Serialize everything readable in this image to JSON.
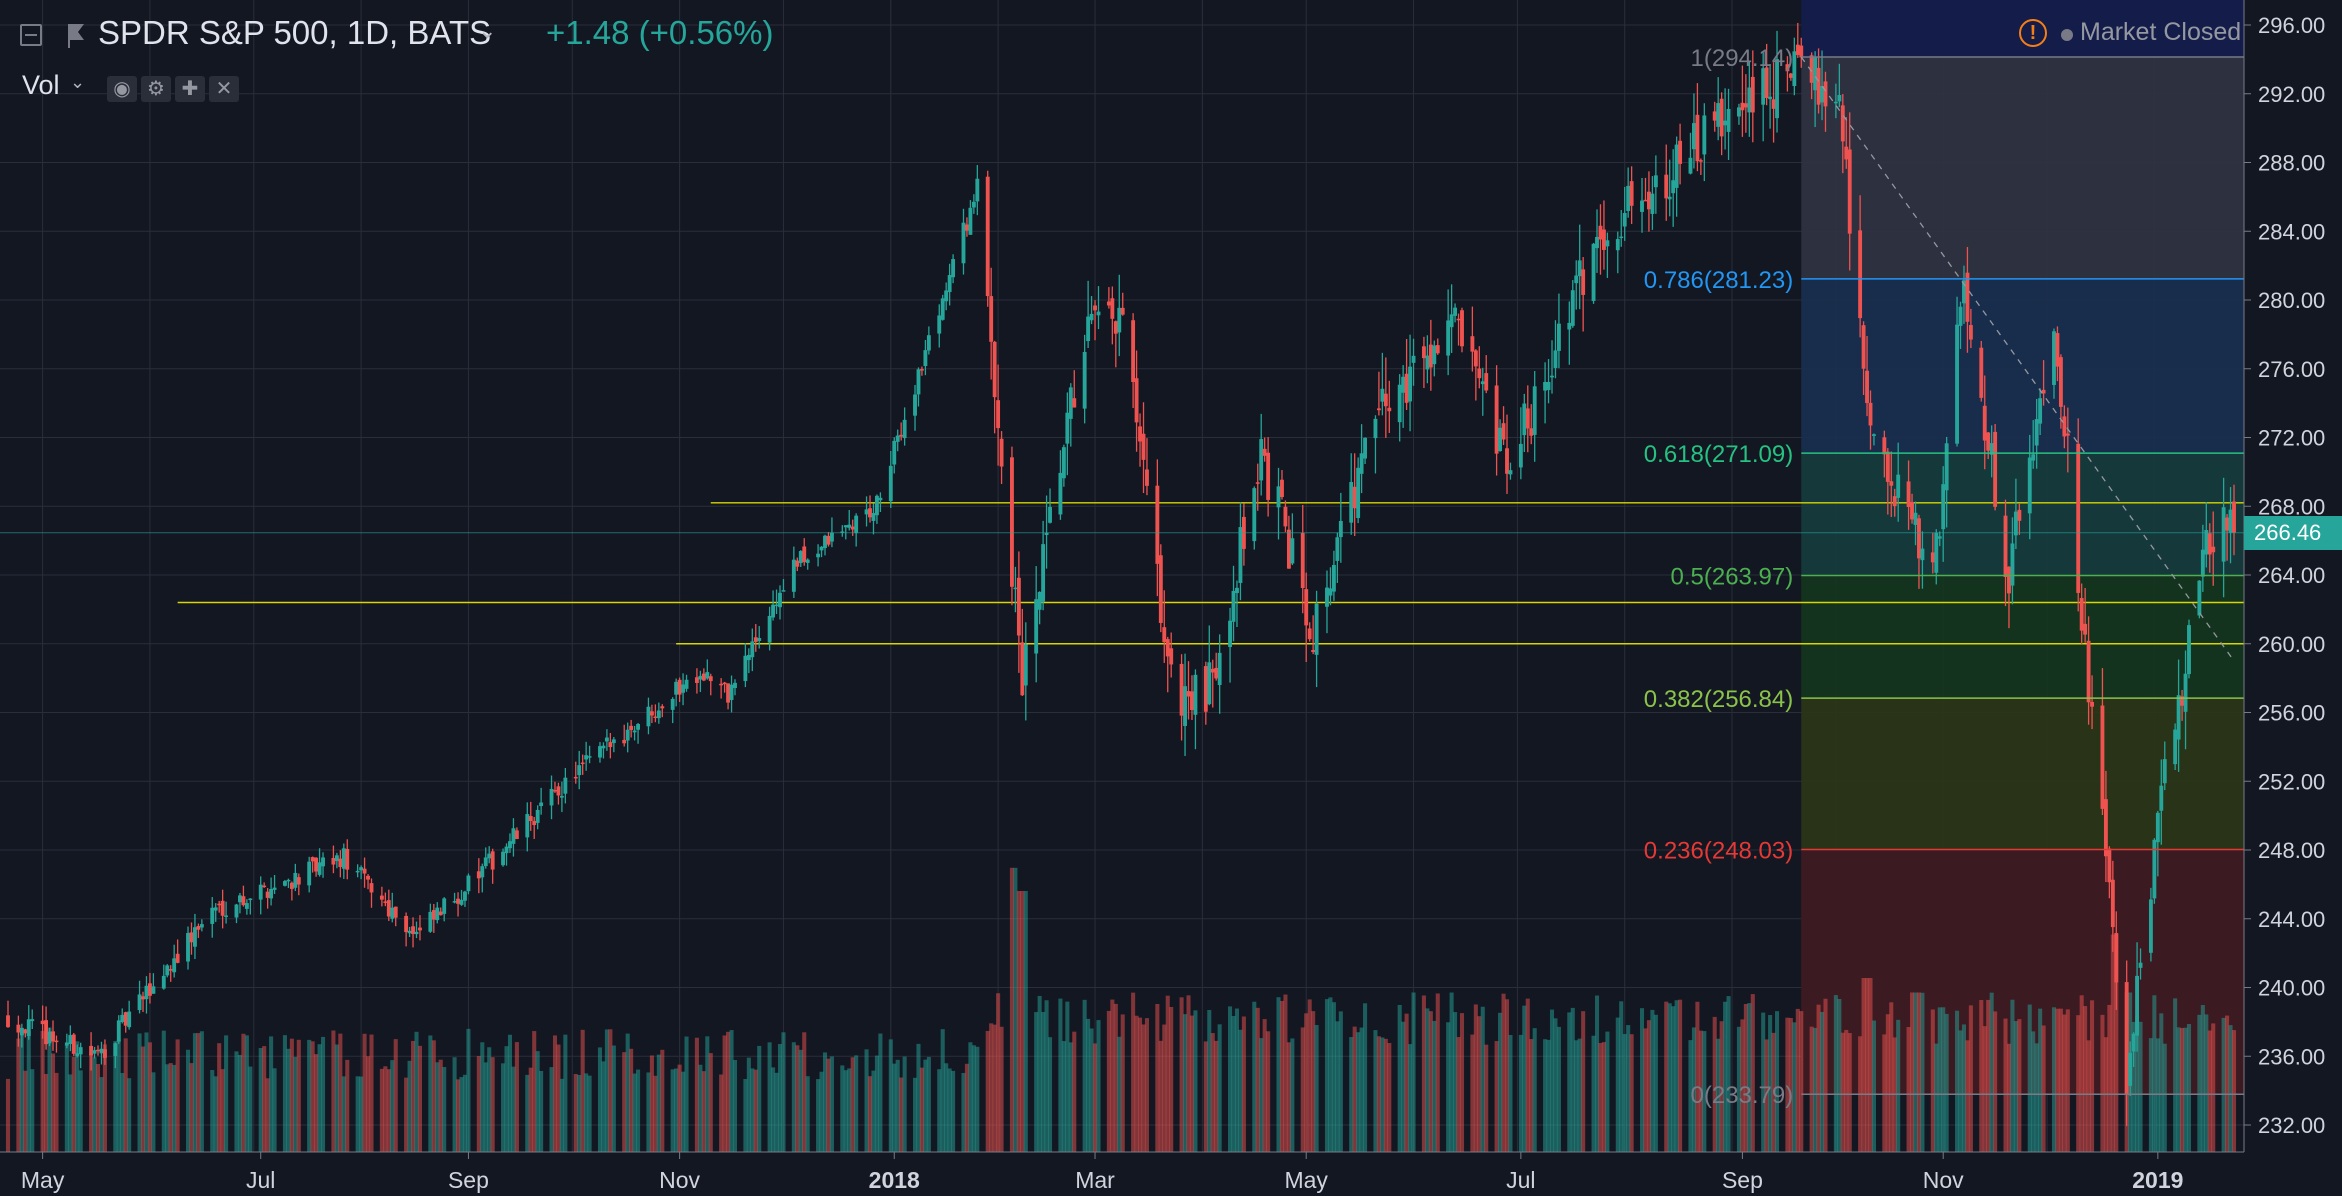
{
  "header": {
    "symbol": "SPDR S&P 500, 1D, BATS",
    "change": "+1.48 (+0.56%)",
    "volume_label": "Vol",
    "market_status": "Market Closed"
  },
  "colors": {
    "background": "#131722",
    "grid": "#2a2e39",
    "up": "#26a69a",
    "down": "#ef5350",
    "trendline": "#d7d600"
  },
  "icons": [
    "collapse-icon",
    "flag-icon",
    "chevron-down-icon",
    "eye-icon",
    "gear-icon",
    "plus-icon",
    "close-icon",
    "warning-icon"
  ],
  "last_price_label": "266.46",
  "chart_data": {
    "type": "candlestick",
    "price_axis_ticks": [
      "296.00",
      "292.00",
      "288.00",
      "284.00",
      "280.00",
      "276.00",
      "272.00",
      "268.00",
      "264.00",
      "260.00",
      "256.00",
      "252.00",
      "248.00",
      "244.00",
      "240.00",
      "236.00",
      "232.00"
    ],
    "time_axis_labels": [
      "May",
      "Jul",
      "Sep",
      "Nov",
      "2018",
      "Mar",
      "May",
      "Jul",
      "Sep",
      "Nov",
      "2019"
    ],
    "ylim": [
      230,
      297
    ],
    "last_price": 266.46,
    "grid": true,
    "anchors": [
      {
        "date": "2017-04-21",
        "price": 238.2
      },
      {
        "date": "2017-05-17",
        "price": 236.0
      },
      {
        "date": "2017-06-19",
        "price": 244.5
      },
      {
        "date": "2017-07-27",
        "price": 247.5
      },
      {
        "date": "2017-08-17",
        "price": 243.0
      },
      {
        "date": "2017-09-06",
        "price": 247.0
      },
      {
        "date": "2017-10-02",
        "price": 252.5
      },
      {
        "date": "2017-11-07",
        "price": 258.5
      },
      {
        "date": "2017-11-15",
        "price": 257.0
      },
      {
        "date": "2017-12-04",
        "price": 264.5
      },
      {
        "date": "2017-12-28",
        "price": 268.0
      },
      {
        "date": "2018-01-26",
        "price": 286.5
      },
      {
        "date": "2018-02-08",
        "price": 257.6
      },
      {
        "date": "2018-02-26",
        "price": 278.0
      },
      {
        "date": "2018-03-09",
        "price": 278.7
      },
      {
        "date": "2018-03-23",
        "price": 257.5
      },
      {
        "date": "2018-04-02",
        "price": 256.5
      },
      {
        "date": "2018-04-18",
        "price": 271.0
      },
      {
        "date": "2018-05-03",
        "price": 261.0
      },
      {
        "date": "2018-05-21",
        "price": 273.0
      },
      {
        "date": "2018-06-12",
        "price": 279.0
      },
      {
        "date": "2018-06-28",
        "price": 270.0
      },
      {
        "date": "2018-07-25",
        "price": 284.0
      },
      {
        "date": "2018-08-28",
        "price": 290.0
      },
      {
        "date": "2018-09-20",
        "price": 293.6
      },
      {
        "date": "2018-10-02",
        "price": 292.0
      },
      {
        "date": "2018-10-11",
        "price": 272.0
      },
      {
        "date": "2018-10-29",
        "price": 263.9
      },
      {
        "date": "2018-11-07",
        "price": 281.0
      },
      {
        "date": "2018-11-20",
        "price": 264.0
      },
      {
        "date": "2018-12-03",
        "price": 279.3
      },
      {
        "date": "2018-12-24",
        "price": 234.3
      },
      {
        "date": "2019-01-04",
        "price": 252.4
      },
      {
        "date": "2019-01-17",
        "price": 266.5
      }
    ],
    "volume_spikes": [
      {
        "date": "2018-02-05",
        "relative": 0.98
      },
      {
        "date": "2018-02-08",
        "relative": 0.9
      },
      {
        "date": "2018-03-23",
        "relative": 0.5
      },
      {
        "date": "2018-10-10",
        "relative": 0.6
      },
      {
        "date": "2018-10-24",
        "relative": 0.55
      },
      {
        "date": "2018-12-21",
        "relative": 0.75
      },
      {
        "date": "2018-12-24",
        "relative": 0.55
      }
    ],
    "horizontal_lines": [
      {
        "price": 268.2,
        "from_date": "2017-11-10"
      },
      {
        "price": 262.4,
        "from_date": "2017-06-09"
      },
      {
        "price": 260.0,
        "from_date": "2017-10-31"
      }
    ],
    "fibonacci": {
      "start_date": "2018-09-21",
      "end_date": "2019-01-24",
      "levels": [
        {
          "ratio": "1",
          "price": 294.14,
          "label": "1(294.14)",
          "color": "#787b86",
          "fill": "#303342"
        },
        {
          "ratio": "0.786",
          "price": 281.23,
          "label": "0.786(281.23)",
          "color": "#2196f3",
          "fill": "#1a3050"
        },
        {
          "ratio": "0.618",
          "price": 271.09,
          "label": "0.618(271.09)",
          "color": "#26c281",
          "fill": "#163c3e"
        },
        {
          "ratio": "0.5",
          "price": 263.97,
          "label": "0.5(263.97)",
          "color": "#4caf50",
          "fill": "#15361e"
        },
        {
          "ratio": "0.382",
          "price": 256.84,
          "label": "0.382(256.84)",
          "color": "#8bc34a",
          "fill": "#2b3617"
        },
        {
          "ratio": "0.236",
          "price": 248.03,
          "label": "0.236(248.03)",
          "color": "#e53935",
          "fill": "#3b1a22"
        },
        {
          "ratio": "0",
          "price": 233.79,
          "label": "0(233.79)",
          "color": "#787b86",
          "fill": ""
        }
      ],
      "top_band_color": "#141c4a"
    },
    "trend_line": {
      "from_date": "2018-09-21",
      "from_price": 294.14,
      "to_date": "2019-01-24",
      "to_price": 259.0,
      "style": "dashed"
    }
  }
}
